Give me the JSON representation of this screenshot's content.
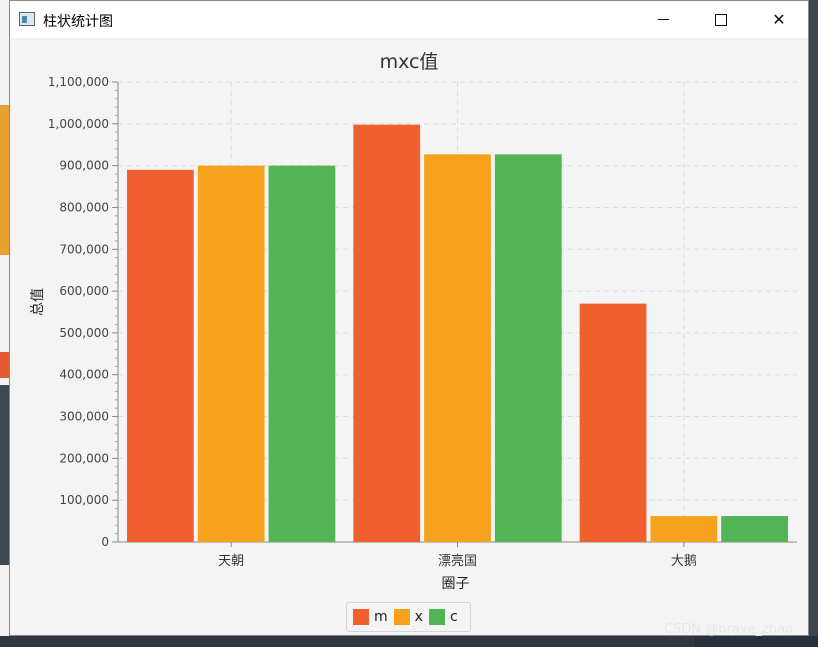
{
  "window": {
    "title": "柱状统计图",
    "minimize_icon": "minimize-icon",
    "maximize_icon": "maximize-icon",
    "close_icon": "close-icon"
  },
  "chart_data": {
    "type": "bar",
    "title": "mxc值",
    "xlabel": "圈子",
    "ylabel": "总值",
    "categories": [
      "天朝",
      "漂亮国",
      "大鹅"
    ],
    "series": [
      {
        "name": "m",
        "color": "#f0602e",
        "values": [
          890000,
          998000,
          570000
        ]
      },
      {
        "name": "x",
        "color": "#f7a21d",
        "values": [
          900000,
          927000,
          62000
        ]
      },
      {
        "name": "c",
        "color": "#52b454",
        "values": [
          900000,
          927000,
          62000
        ]
      }
    ],
    "ylim": [
      0,
      1100000
    ],
    "yticks": [
      "0",
      "100,000",
      "200,000",
      "300,000",
      "400,000",
      "500,000",
      "600,000",
      "700,000",
      "800,000",
      "900,000",
      "1,000,000",
      "1,100,000"
    ],
    "grid": true,
    "legend_position": "bottom"
  },
  "watermark": "CSDN @brave_zhao"
}
